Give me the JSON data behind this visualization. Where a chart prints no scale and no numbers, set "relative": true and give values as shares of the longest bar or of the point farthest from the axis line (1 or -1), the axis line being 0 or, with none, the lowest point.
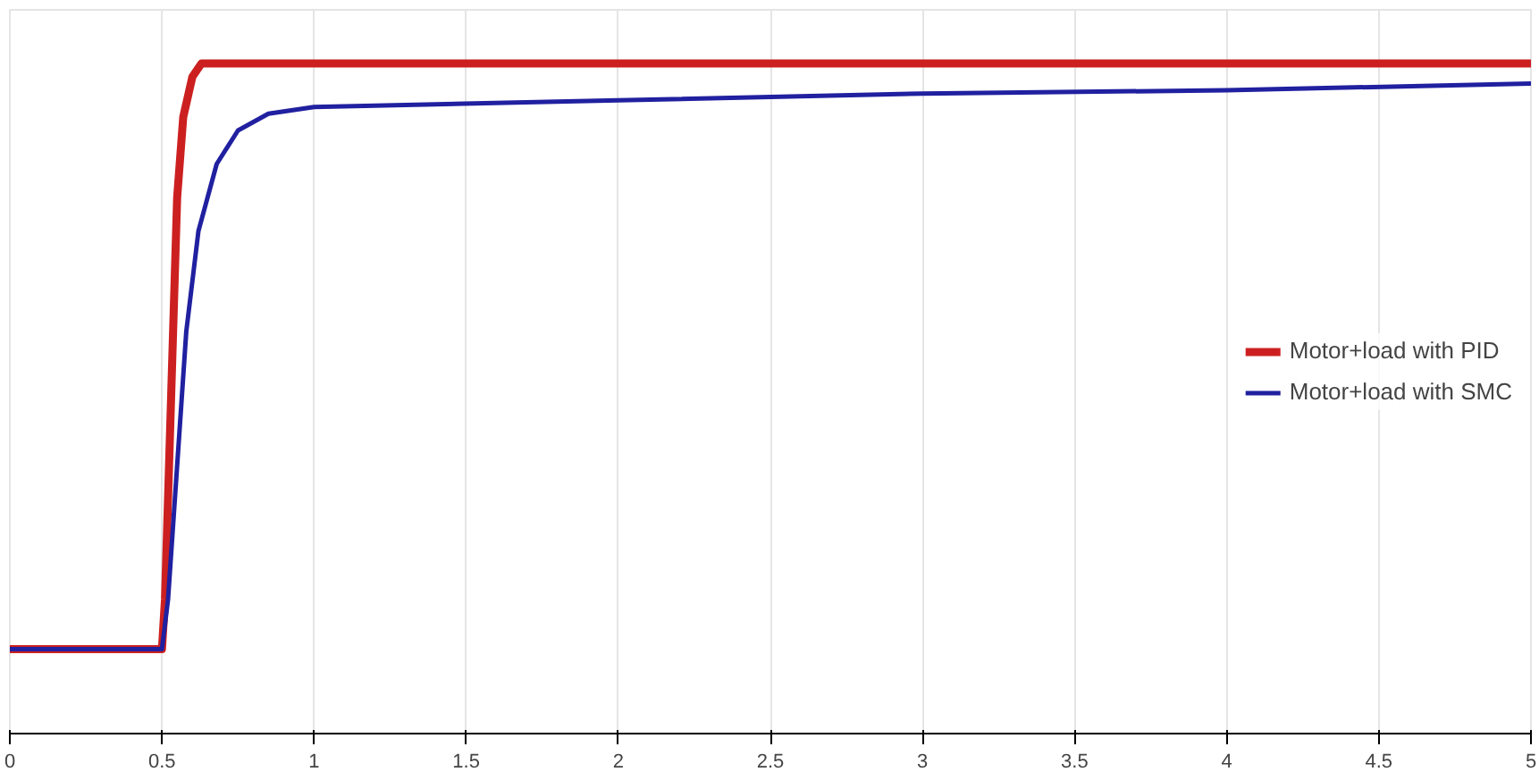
{
  "chart_data": {
    "type": "line",
    "relative": true,
    "xlim": [
      0,
      5
    ],
    "xticks": [
      0,
      0.5,
      1,
      1.5,
      2,
      2.5,
      3,
      3.5,
      4,
      4.5,
      5
    ],
    "grid": "x",
    "legend": "right",
    "line_style": "solid",
    "marker": "none",
    "series": [
      {
        "name": "Motor+load with PID",
        "color": "#cc2020",
        "x": [
          0,
          0.5,
          0.51,
          0.53,
          0.55,
          0.57,
          0.6,
          0.63,
          5
        ],
        "values": [
          0.126,
          0.126,
          0.2,
          0.5,
          0.8,
          0.92,
          0.98,
          1,
          1
        ]
      },
      {
        "name": "Motor+load with SMC",
        "color": "#2020a0",
        "x": [
          0,
          0.5,
          0.52,
          0.55,
          0.58,
          0.62,
          0.68,
          0.75,
          0.85,
          1,
          2,
          3,
          4,
          5
        ],
        "values": [
          0.126,
          0.126,
          0.2,
          0.4,
          0.6,
          0.75,
          0.85,
          0.9,
          0.925,
          0.935,
          0.945,
          0.955,
          0.96,
          0.97
        ]
      }
    ]
  }
}
